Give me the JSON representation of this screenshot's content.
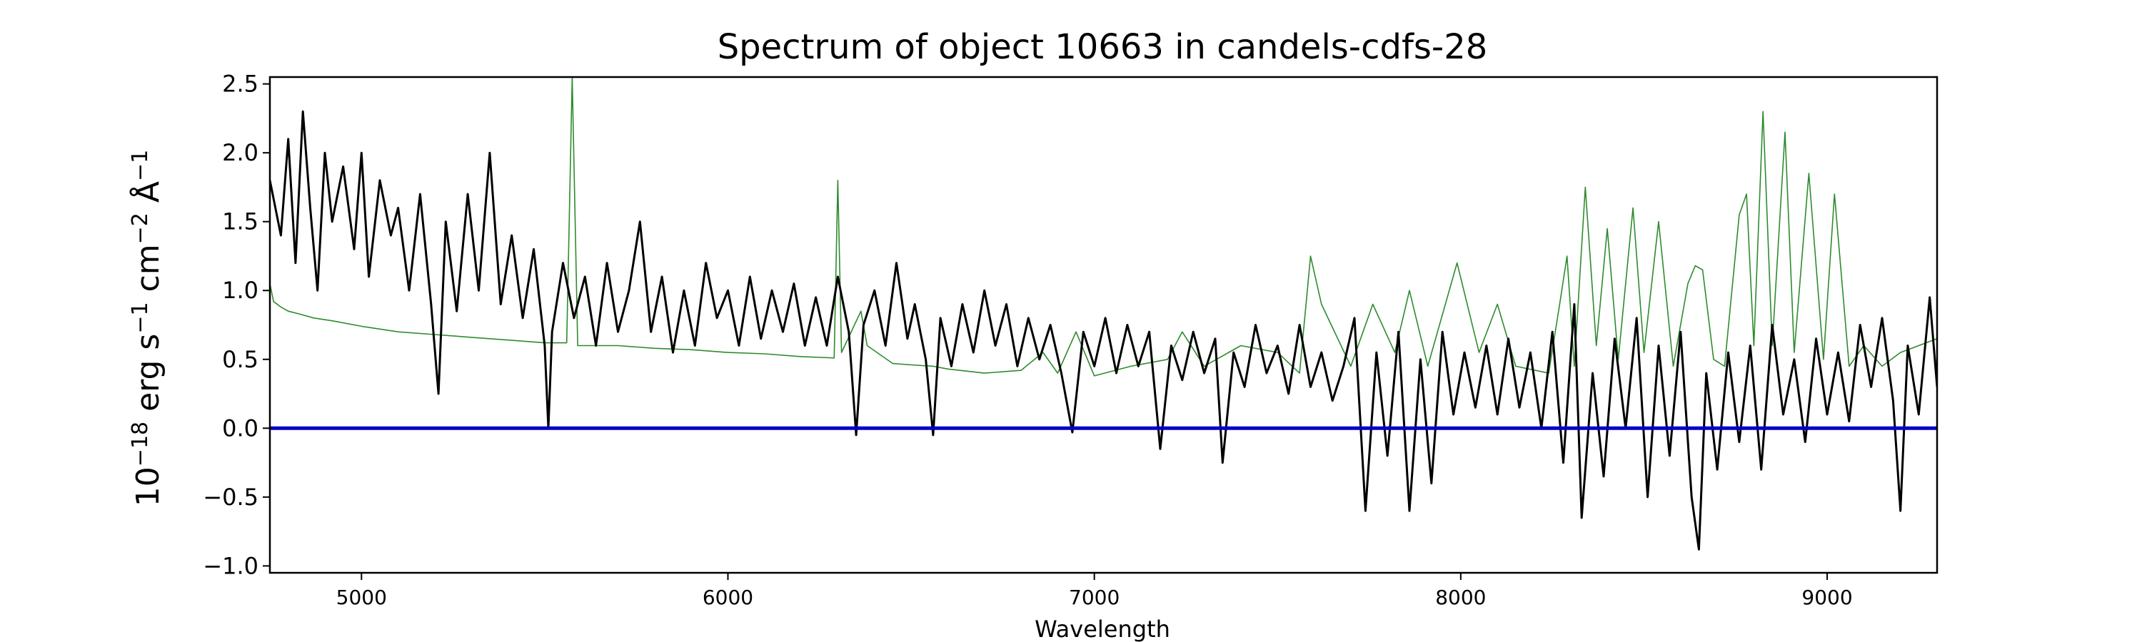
{
  "chart_data": {
    "type": "line",
    "title": "Spectrum of object 10663 in candels-cdfs-28",
    "xlabel": "Wavelength",
    "ylabel": {
      "base": "10",
      "exp1": "−18",
      "t1": " erg s",
      "exp2": "−1",
      "t2": " cm",
      "exp3": "−2",
      "t3": " Å",
      "exp4": "−1"
    },
    "xlim": [
      4750,
      9300
    ],
    "ylim": [
      -1.05,
      2.55
    ],
    "x_ticks": [
      5000,
      6000,
      7000,
      8000,
      9000
    ],
    "x_tick_labels": [
      "5000",
      "6000",
      "7000",
      "8000",
      "9000"
    ],
    "y_ticks": [
      -1.0,
      -0.5,
      0.0,
      0.5,
      1.0,
      1.5,
      2.0,
      2.5
    ],
    "y_tick_labels": [
      "−1.0",
      "−0.5",
      "0.0",
      "0.5",
      "1.0",
      "1.5",
      "2.0",
      "2.5"
    ],
    "grid": false,
    "series": [
      {
        "color": "#2e8b2e",
        "style": "thin-line",
        "points": [
          [
            4750,
            1.05
          ],
          [
            4760,
            0.92
          ],
          [
            4780,
            0.88
          ],
          [
            4800,
            0.85
          ],
          [
            4830,
            0.83
          ],
          [
            4870,
            0.8
          ],
          [
            4920,
            0.78
          ],
          [
            5000,
            0.74
          ],
          [
            5100,
            0.7
          ],
          [
            5200,
            0.68
          ],
          [
            5300,
            0.66
          ],
          [
            5400,
            0.64
          ],
          [
            5500,
            0.62
          ],
          [
            5560,
            0.62
          ],
          [
            5575,
            2.55
          ],
          [
            5590,
            0.6
          ],
          [
            5700,
            0.6
          ],
          [
            5800,
            0.58
          ],
          [
            5900,
            0.57
          ],
          [
            6000,
            0.55
          ],
          [
            6100,
            0.54
          ],
          [
            6200,
            0.52
          ],
          [
            6290,
            0.51
          ],
          [
            6300,
            1.8
          ],
          [
            6310,
            0.55
          ],
          [
            6363,
            0.85
          ],
          [
            6380,
            0.6
          ],
          [
            6450,
            0.47
          ],
          [
            6500,
            0.46
          ],
          [
            6560,
            0.45
          ],
          [
            6600,
            0.43
          ],
          [
            6700,
            0.4
          ],
          [
            6800,
            0.42
          ],
          [
            6860,
            0.55
          ],
          [
            6900,
            0.4
          ],
          [
            6950,
            0.7
          ],
          [
            7000,
            0.38
          ],
          [
            7100,
            0.45
          ],
          [
            7200,
            0.5
          ],
          [
            7240,
            0.7
          ],
          [
            7300,
            0.45
          ],
          [
            7400,
            0.6
          ],
          [
            7500,
            0.55
          ],
          [
            7560,
            0.4
          ],
          [
            7590,
            1.25
          ],
          [
            7620,
            0.9
          ],
          [
            7700,
            0.45
          ],
          [
            7760,
            0.9
          ],
          [
            7820,
            0.55
          ],
          [
            7860,
            1.0
          ],
          [
            7910,
            0.45
          ],
          [
            7990,
            1.2
          ],
          [
            8050,
            0.55
          ],
          [
            8100,
            0.9
          ],
          [
            8150,
            0.45
          ],
          [
            8240,
            0.4
          ],
          [
            8270,
            0.9
          ],
          [
            8290,
            1.25
          ],
          [
            8310,
            0.45
          ],
          [
            8340,
            1.75
          ],
          [
            8370,
            0.6
          ],
          [
            8400,
            1.45
          ],
          [
            8430,
            0.5
          ],
          [
            8470,
            1.6
          ],
          [
            8500,
            0.55
          ],
          [
            8540,
            1.5
          ],
          [
            8580,
            0.45
          ],
          [
            8620,
            1.05
          ],
          [
            8640,
            1.18
          ],
          [
            8660,
            1.15
          ],
          [
            8690,
            0.5
          ],
          [
            8720,
            0.45
          ],
          [
            8760,
            1.55
          ],
          [
            8780,
            1.7
          ],
          [
            8800,
            0.6
          ],
          [
            8825,
            2.3
          ],
          [
            8850,
            0.6
          ],
          [
            8885,
            2.15
          ],
          [
            8910,
            0.55
          ],
          [
            8950,
            1.85
          ],
          [
            8990,
            0.5
          ],
          [
            9020,
            1.7
          ],
          [
            9060,
            0.45
          ],
          [
            9100,
            0.6
          ],
          [
            9150,
            0.45
          ],
          [
            9200,
            0.55
          ],
          [
            9250,
            0.6
          ],
          [
            9300,
            0.65
          ]
        ]
      },
      {
        "color": "#000000",
        "style": "noisy-spectrum",
        "points": [
          [
            4750,
            1.8
          ],
          [
            4780,
            1.4
          ],
          [
            4800,
            2.1
          ],
          [
            4820,
            1.2
          ],
          [
            4840,
            2.3
          ],
          [
            4860,
            1.6
          ],
          [
            4880,
            1.0
          ],
          [
            4900,
            2.0
          ],
          [
            4920,
            1.5
          ],
          [
            4950,
            1.9
          ],
          [
            4980,
            1.3
          ],
          [
            5000,
            2.0
          ],
          [
            5020,
            1.1
          ],
          [
            5050,
            1.8
          ],
          [
            5080,
            1.4
          ],
          [
            5100,
            1.6
          ],
          [
            5130,
            1.0
          ],
          [
            5160,
            1.7
          ],
          [
            5190,
            0.9
          ],
          [
            5210,
            0.25
          ],
          [
            5230,
            1.5
          ],
          [
            5260,
            0.85
          ],
          [
            5290,
            1.7
          ],
          [
            5320,
            1.0
          ],
          [
            5350,
            2.0
          ],
          [
            5380,
            0.9
          ],
          [
            5410,
            1.4
          ],
          [
            5440,
            0.8
          ],
          [
            5470,
            1.3
          ],
          [
            5500,
            0.6
          ],
          [
            5510,
            0.0
          ],
          [
            5520,
            0.7
          ],
          [
            5550,
            1.2
          ],
          [
            5580,
            0.8
          ],
          [
            5610,
            1.1
          ],
          [
            5640,
            0.6
          ],
          [
            5670,
            1.2
          ],
          [
            5700,
            0.7
          ],
          [
            5730,
            1.0
          ],
          [
            5760,
            1.5
          ],
          [
            5790,
            0.7
          ],
          [
            5820,
            1.1
          ],
          [
            5850,
            0.55
          ],
          [
            5880,
            1.0
          ],
          [
            5910,
            0.6
          ],
          [
            5940,
            1.2
          ],
          [
            5970,
            0.8
          ],
          [
            6000,
            1.0
          ],
          [
            6030,
            0.6
          ],
          [
            6060,
            1.1
          ],
          [
            6090,
            0.65
          ],
          [
            6120,
            1.0
          ],
          [
            6150,
            0.7
          ],
          [
            6180,
            1.05
          ],
          [
            6210,
            0.6
          ],
          [
            6240,
            0.95
          ],
          [
            6270,
            0.6
          ],
          [
            6300,
            1.1
          ],
          [
            6330,
            0.7
          ],
          [
            6350,
            -0.05
          ],
          [
            6370,
            0.75
          ],
          [
            6400,
            1.0
          ],
          [
            6430,
            0.6
          ],
          [
            6460,
            1.2
          ],
          [
            6490,
            0.65
          ],
          [
            6510,
            0.9
          ],
          [
            6540,
            0.5
          ],
          [
            6560,
            -0.05
          ],
          [
            6580,
            0.8
          ],
          [
            6610,
            0.45
          ],
          [
            6640,
            0.9
          ],
          [
            6670,
            0.55
          ],
          [
            6700,
            1.0
          ],
          [
            6730,
            0.6
          ],
          [
            6760,
            0.9
          ],
          [
            6790,
            0.45
          ],
          [
            6820,
            0.8
          ],
          [
            6850,
            0.5
          ],
          [
            6880,
            0.75
          ],
          [
            6910,
            0.4
          ],
          [
            6940,
            -0.03
          ],
          [
            6970,
            0.7
          ],
          [
            7000,
            0.45
          ],
          [
            7030,
            0.8
          ],
          [
            7060,
            0.4
          ],
          [
            7090,
            0.75
          ],
          [
            7120,
            0.45
          ],
          [
            7150,
            0.7
          ],
          [
            7180,
            -0.15
          ],
          [
            7210,
            0.6
          ],
          [
            7240,
            0.35
          ],
          [
            7270,
            0.7
          ],
          [
            7300,
            0.4
          ],
          [
            7330,
            0.65
          ],
          [
            7350,
            -0.25
          ],
          [
            7380,
            0.55
          ],
          [
            7410,
            0.3
          ],
          [
            7440,
            0.75
          ],
          [
            7470,
            0.4
          ],
          [
            7500,
            0.6
          ],
          [
            7530,
            0.25
          ],
          [
            7560,
            0.75
          ],
          [
            7590,
            0.3
          ],
          [
            7620,
            0.55
          ],
          [
            7650,
            0.2
          ],
          [
            7680,
            0.45
          ],
          [
            7710,
            0.8
          ],
          [
            7740,
            -0.6
          ],
          [
            7770,
            0.55
          ],
          [
            7800,
            -0.2
          ],
          [
            7830,
            0.7
          ],
          [
            7860,
            -0.6
          ],
          [
            7890,
            0.5
          ],
          [
            7920,
            -0.4
          ],
          [
            7950,
            0.7
          ],
          [
            7980,
            0.1
          ],
          [
            8010,
            0.55
          ],
          [
            8040,
            0.15
          ],
          [
            8070,
            0.6
          ],
          [
            8100,
            0.1
          ],
          [
            8130,
            0.65
          ],
          [
            8160,
            0.15
          ],
          [
            8190,
            0.55
          ],
          [
            8220,
            0.0
          ],
          [
            8250,
            0.7
          ],
          [
            8280,
            -0.25
          ],
          [
            8310,
            0.9
          ],
          [
            8330,
            -0.65
          ],
          [
            8360,
            0.4
          ],
          [
            8390,
            -0.35
          ],
          [
            8420,
            0.65
          ],
          [
            8450,
            0.0
          ],
          [
            8480,
            0.8
          ],
          [
            8510,
            -0.5
          ],
          [
            8540,
            0.6
          ],
          [
            8570,
            -0.2
          ],
          [
            8600,
            0.7
          ],
          [
            8630,
            -0.5
          ],
          [
            8650,
            -0.88
          ],
          [
            8670,
            0.4
          ],
          [
            8700,
            -0.3
          ],
          [
            8730,
            0.55
          ],
          [
            8760,
            -0.1
          ],
          [
            8790,
            0.6
          ],
          [
            8820,
            -0.3
          ],
          [
            8850,
            0.75
          ],
          [
            8880,
            0.1
          ],
          [
            8910,
            0.5
          ],
          [
            8940,
            -0.1
          ],
          [
            8970,
            0.65
          ],
          [
            9000,
            0.1
          ],
          [
            9030,
            0.55
          ],
          [
            9060,
            0.05
          ],
          [
            9090,
            0.75
          ],
          [
            9120,
            0.3
          ],
          [
            9150,
            0.8
          ],
          [
            9180,
            0.2
          ],
          [
            9200,
            -0.6
          ],
          [
            9220,
            0.6
          ],
          [
            9250,
            0.1
          ],
          [
            9280,
            0.95
          ],
          [
            9300,
            0.3
          ]
        ]
      },
      {
        "color": "#0000cc",
        "style": "thick-line",
        "points": [
          [
            4750,
            0.0
          ],
          [
            9300,
            0.0
          ]
        ]
      }
    ]
  }
}
